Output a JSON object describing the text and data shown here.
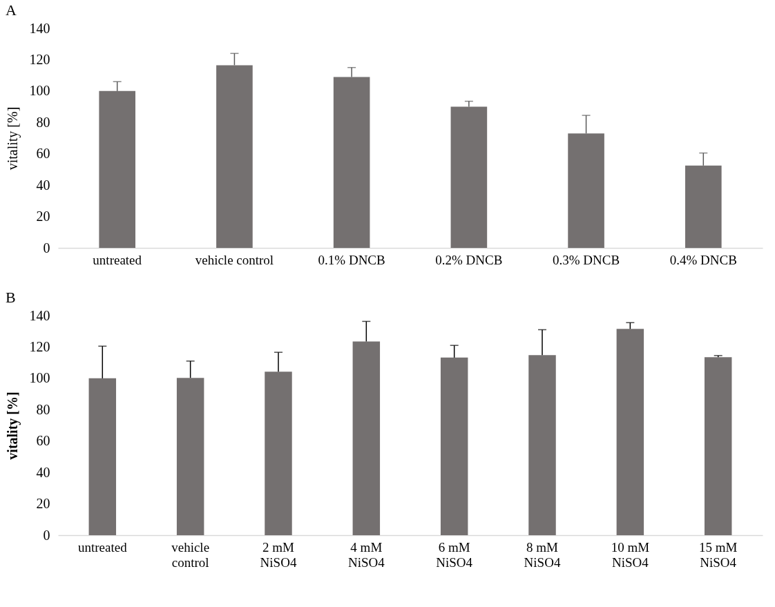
{
  "chart_data": [
    {
      "type": "bar",
      "ylabel": "vitality [%]",
      "annotations": [
        "A"
      ],
      "categories": [
        "untreated",
        "vehicle control",
        "0.1% DNCB",
        "0.2% DNCB",
        "0.3% DNCB",
        "0.4% DNCB"
      ],
      "values": [
        100,
        116.5,
        109,
        90,
        73,
        52.5
      ],
      "errors": [
        [
          100,
          106
        ],
        [
          116.5,
          124
        ],
        [
          109,
          115
        ],
        [
          90,
          93.5
        ],
        [
          73,
          84.5
        ],
        [
          52.5,
          60.5
        ]
      ],
      "color": "#747070",
      "ylim": [
        0,
        140
      ],
      "yticks": [
        0,
        20,
        40,
        60,
        80,
        100,
        120,
        140
      ],
      "grid": false
    },
    {
      "type": "bar",
      "ylabel": "vitality [%]",
      "annotations": [
        "B"
      ],
      "categories": [
        "untreated",
        "vehicle control",
        "2 mM NiSO4",
        "4 mM NiSO4",
        "6 mM NiSO4",
        "8 mM NiSO4",
        "10 mM NiSO4",
        "15 mM NiSO4"
      ],
      "values": [
        100,
        100.3,
        104.2,
        123.5,
        113.2,
        114.8,
        131.5,
        113.5
      ],
      "errors": [
        [
          100,
          120.5
        ],
        [
          100.3,
          111
        ],
        [
          104.2,
          116.6
        ],
        [
          123.5,
          136.3
        ],
        [
          113.2,
          121
        ],
        [
          114.8,
          131
        ],
        [
          131.5,
          135.5
        ],
        [
          113.5,
          114.5
        ]
      ],
      "color": "#747070",
      "ylim": [
        0,
        140
      ],
      "yticks": [
        0,
        20,
        40,
        60,
        80,
        100,
        120,
        140
      ],
      "grid": false
    }
  ]
}
